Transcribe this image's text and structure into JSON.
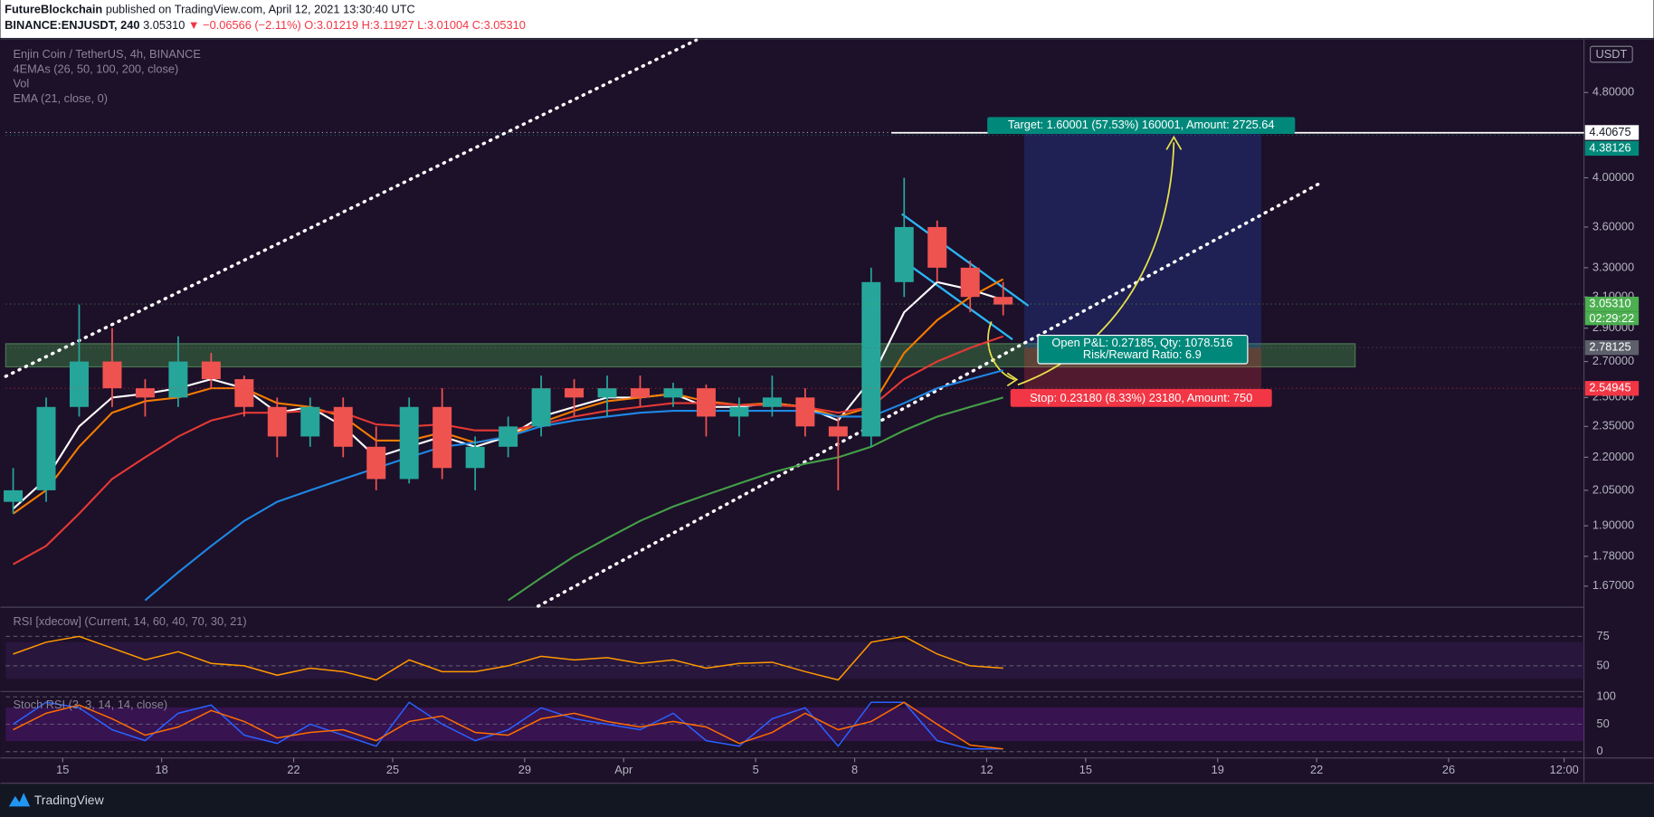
{
  "header": {
    "author": "FutureBlockchain",
    "published": "published on TradingView.com, April 12, 2021 13:30:40 UTC",
    "symbol": "BINANCE:ENJUSDT, 240",
    "last": "3.05310",
    "change": "▼ −0.06566 (−2.11%)",
    "ohlc": "O:3.01219 H:3.11927 L:3.01004 C:3.05310"
  },
  "footer": {
    "brand": "TradingView"
  },
  "chart_data": [
    {
      "type": "candlestick",
      "title": "Enjin Coin / TetherUS, 4h, BINANCE",
      "indicators": [
        "4EMAs (26, 50, 100, 200, close)",
        "Vol",
        "EMA (21, close, 0)"
      ],
      "currency": "USDT",
      "log_scale": true,
      "up_color": "#26a69a",
      "down_color": "#ef5350",
      "x": [
        "2021-03-13T12:00",
        "2021-03-14T12:00",
        "2021-03-15T12:00",
        "2021-03-16T12:00",
        "2021-03-17T12:00",
        "2021-03-18T12:00",
        "2021-03-19T12:00",
        "2021-03-20T12:00",
        "2021-03-21T12:00",
        "2021-03-22T12:00",
        "2021-03-23T12:00",
        "2021-03-24T12:00",
        "2021-03-25T12:00",
        "2021-03-26T12:00",
        "2021-03-27T12:00",
        "2021-03-28T12:00",
        "2021-03-29T12:00",
        "2021-03-30T12:00",
        "2021-03-31T12:00",
        "2021-04-01T12:00",
        "2021-04-02T12:00",
        "2021-04-03T12:00",
        "2021-04-04T12:00",
        "2021-04-05T12:00",
        "2021-04-06T12:00",
        "2021-04-07T12:00",
        "2021-04-08T12:00",
        "2021-04-09T12:00",
        "2021-04-10T12:00",
        "2021-04-11T12:00",
        "2021-04-12T12:00"
      ],
      "open": [
        2.0,
        2.05,
        2.45,
        2.7,
        2.55,
        2.5,
        2.7,
        2.6,
        2.45,
        2.3,
        2.45,
        2.25,
        2.1,
        2.45,
        2.15,
        2.25,
        2.35,
        2.55,
        2.5,
        2.55,
        2.5,
        2.55,
        2.4,
        2.45,
        2.5,
        2.35,
        2.3,
        3.2,
        3.6,
        3.3,
        3.1
      ],
      "high": [
        2.15,
        2.5,
        3.05,
        2.9,
        2.6,
        2.85,
        2.75,
        2.62,
        2.5,
        2.5,
        2.5,
        2.35,
        2.5,
        2.55,
        2.3,
        2.4,
        2.62,
        2.6,
        2.62,
        2.62,
        2.58,
        2.57,
        2.5,
        2.62,
        2.55,
        2.4,
        3.3,
        4.0,
        3.65,
        3.35,
        3.2
      ],
      "low": [
        1.95,
        2.0,
        2.4,
        2.45,
        2.4,
        2.45,
        2.55,
        2.4,
        2.2,
        2.25,
        2.2,
        2.05,
        2.08,
        2.1,
        2.05,
        2.2,
        2.3,
        2.4,
        2.4,
        2.45,
        2.45,
        2.3,
        2.3,
        2.4,
        2.3,
        2.05,
        2.25,
        3.1,
        3.2,
        3.0,
        2.98
      ],
      "close": [
        2.05,
        2.45,
        2.7,
        2.55,
        2.5,
        2.7,
        2.6,
        2.45,
        2.3,
        2.45,
        2.25,
        2.1,
        2.45,
        2.15,
        2.25,
        2.35,
        2.55,
        2.5,
        2.55,
        2.5,
        2.55,
        2.4,
        2.45,
        2.5,
        2.35,
        2.3,
        3.2,
        3.6,
        3.3,
        3.1,
        3.05
      ],
      "overlays": [
        {
          "color": "#ffffff",
          "values": [
            1.97,
            2.1,
            2.35,
            2.5,
            2.52,
            2.55,
            2.6,
            2.55,
            2.42,
            2.45,
            2.35,
            2.2,
            2.25,
            2.3,
            2.25,
            2.3,
            2.4,
            2.45,
            2.5,
            2.5,
            2.52,
            2.45,
            2.45,
            2.47,
            2.45,
            2.38,
            2.6,
            3.0,
            3.2,
            3.15,
            3.08
          ]
        },
        {
          "color": "#f57c00",
          "values": [
            1.95,
            2.05,
            2.25,
            2.42,
            2.48,
            2.5,
            2.55,
            2.55,
            2.47,
            2.45,
            2.4,
            2.28,
            2.28,
            2.32,
            2.27,
            2.3,
            2.37,
            2.43,
            2.48,
            2.5,
            2.52,
            2.48,
            2.46,
            2.47,
            2.45,
            2.4,
            2.45,
            2.75,
            2.95,
            3.1,
            3.22
          ]
        },
        {
          "color": "#e53935",
          "values": [
            1.75,
            1.82,
            1.95,
            2.1,
            2.2,
            2.3,
            2.38,
            2.42,
            2.42,
            2.43,
            2.42,
            2.36,
            2.35,
            2.36,
            2.33,
            2.33,
            2.36,
            2.4,
            2.43,
            2.45,
            2.47,
            2.47,
            2.46,
            2.46,
            2.45,
            2.42,
            2.45,
            2.6,
            2.7,
            2.78,
            2.85
          ]
        },
        {
          "color": "#1e88e5",
          "values": [
            null,
            null,
            null,
            null,
            1.62,
            1.72,
            1.82,
            1.92,
            2.0,
            2.05,
            2.1,
            2.15,
            2.2,
            2.25,
            2.27,
            2.3,
            2.35,
            2.38,
            2.4,
            2.42,
            2.43,
            2.43,
            2.43,
            2.43,
            2.43,
            2.4,
            2.4,
            2.47,
            2.55,
            2.6,
            2.65
          ]
        },
        {
          "color": "#43a047",
          "values": [
            null,
            null,
            null,
            null,
            null,
            null,
            null,
            null,
            null,
            null,
            null,
            null,
            null,
            null,
            null,
            1.62,
            1.7,
            1.78,
            1.85,
            1.92,
            1.98,
            2.03,
            2.08,
            2.13,
            2.17,
            2.2,
            2.25,
            2.33,
            2.4,
            2.45,
            2.5
          ]
        }
      ],
      "xlim": [
        "2021-03-13T06:36",
        "2021-04-30T02:24"
      ],
      "xticks": [
        {
          "value": "2021-03-15T00:00",
          "label": "15"
        },
        {
          "value": "2021-03-18T00:00",
          "label": "18"
        },
        {
          "value": "2021-03-22T00:00",
          "label": "22"
        },
        {
          "value": "2021-03-25T00:00",
          "label": "25"
        },
        {
          "value": "2021-03-29T00:00",
          "label": "29"
        },
        {
          "value": "2021-04-01T00:00",
          "label": "Apr"
        },
        {
          "value": "2021-04-05T00:00",
          "label": "5"
        },
        {
          "value": "2021-04-08T00:00",
          "label": "8"
        },
        {
          "value": "2021-04-12T00:00",
          "label": "12"
        },
        {
          "value": "2021-04-15T00:00",
          "label": "15"
        },
        {
          "value": "2021-04-19T00:00",
          "label": "19"
        },
        {
          "value": "2021-04-22T00:00",
          "label": "22"
        },
        {
          "value": "2021-04-26T00:00",
          "label": "26"
        },
        {
          "value": "2021-04-29T12:00",
          "label": "12:00"
        }
      ],
      "ylim": [
        1.6,
        5.37
      ],
      "yticks": [
        {
          "value": 4.8,
          "label": "4.80000"
        },
        {
          "value": 4.0,
          "label": "4.00000"
        },
        {
          "value": 3.6,
          "label": "3.60000"
        },
        {
          "value": 3.3,
          "label": "3.30000"
        },
        {
          "value": 3.1,
          "label": "3.10000"
        },
        {
          "value": 2.9,
          "label": "2.90000"
        },
        {
          "value": 2.7,
          "label": "2.70000"
        },
        {
          "value": 2.5,
          "label": "2.50000"
        },
        {
          "value": 2.35,
          "label": "2.35000"
        },
        {
          "value": 2.2,
          "label": "2.20000"
        },
        {
          "value": 2.05,
          "label": "2.05000"
        },
        {
          "value": 1.9,
          "label": "1.90000"
        },
        {
          "value": 1.78,
          "label": "1.78000"
        },
        {
          "value": 1.67,
          "label": "1.67000"
        }
      ],
      "price_labels": [
        {
          "value": 4.40675,
          "color": "#ffffff",
          "text_color": "#131722"
        },
        {
          "value": 4.38126,
          "color": "#00897b"
        },
        {
          "value": 3.0531,
          "label": "3.05310",
          "color": "#4caf50"
        },
        {
          "value": 2.78125,
          "color": "#5d606b"
        },
        {
          "value": 2.54945,
          "color": "#f23645"
        }
      ],
      "countdown": "02:29:22",
      "annotations": {
        "target": "Target: 1.60001 (57.53%) 160001, Amount: 2725.64",
        "open_pnl": "Open P&L: 0.27185, Qty: 1078.516",
        "risk_reward": "Risk/Reward Ratio: 6.9",
        "stop": "Stop: 0.23180 (8.33%) 23180, Amount: 750"
      }
    },
    {
      "type": "line",
      "title": "RSI [xdecow] (Current, 14, 60, 40, 70, 30, 21)",
      "series": [
        {
          "color": "#ff9800",
          "values": [
            60,
            70,
            75,
            65,
            55,
            62,
            52,
            50,
            42,
            48,
            45,
            38,
            55,
            45,
            45,
            50,
            58,
            55,
            57,
            52,
            55,
            48,
            52,
            53,
            45,
            38,
            70,
            75,
            60,
            50,
            48
          ]
        }
      ],
      "ylim": [
        29,
        98
      ],
      "yticks": [
        50,
        75
      ]
    },
    {
      "type": "line",
      "title": "Stoch RSI (3, 3, 14, 14, close)",
      "series": [
        {
          "color": "#2962ff",
          "values": [
            50,
            90,
            80,
            40,
            20,
            70,
            85,
            30,
            15,
            50,
            30,
            10,
            90,
            50,
            20,
            40,
            80,
            60,
            50,
            40,
            70,
            20,
            10,
            60,
            80,
            10,
            90,
            90,
            20,
            5,
            5
          ]
        },
        {
          "color": "#ff6d00",
          "values": [
            40,
            70,
            85,
            60,
            30,
            45,
            75,
            55,
            25,
            35,
            40,
            20,
            55,
            65,
            35,
            30,
            60,
            70,
            55,
            45,
            55,
            45,
            15,
            35,
            70,
            40,
            55,
            90,
            50,
            12,
            5
          ]
        }
      ],
      "ylim": [
        -9.6,
        107.7
      ],
      "yticks": [
        0,
        50,
        100
      ]
    }
  ]
}
